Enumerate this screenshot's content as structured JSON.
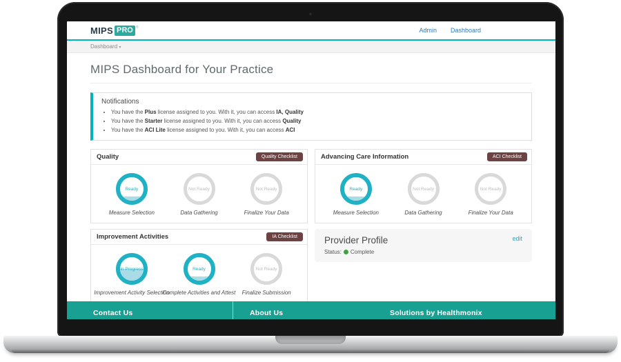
{
  "brand": {
    "mips": "MIPS",
    "pro": "PRO",
    "trademark": "®"
  },
  "nav": {
    "admin": "Admin",
    "dashboard": "Dashboard"
  },
  "breadcrumb": {
    "label": "Dashboard",
    "caret": "▾"
  },
  "page": {
    "title": "MIPS Dashboard for Your Practice"
  },
  "notifications": {
    "title": "Notifications",
    "items": [
      {
        "pre": "You have the ",
        "license": "Plus",
        "mid": " license assigned to you. With it, you can access ",
        "access": "IA, Quality"
      },
      {
        "pre": "You have the ",
        "license": "Starter",
        "mid": " license assigned to you. With it, you can access ",
        "access": "Quality"
      },
      {
        "pre": "You have the ",
        "license": "ACI Lite",
        "mid": " license assigned to you. With it, you can access ",
        "access": "ACI"
      }
    ]
  },
  "cards": [
    {
      "id": "quality",
      "title": "Quality",
      "button": "Quality Checklist",
      "steps": [
        {
          "status": "Ready",
          "state": "ready",
          "fill": 18,
          "label": "Measure Selection"
        },
        {
          "status": "Not Ready",
          "state": "not-ready",
          "fill": 0,
          "label": "Data Gathering"
        },
        {
          "status": "Not Ready",
          "state": "not-ready",
          "fill": 0,
          "label": "Finalize Your Data"
        }
      ]
    },
    {
      "id": "aci",
      "title": "Advancing Care Information",
      "button": "ACI Checklist",
      "steps": [
        {
          "status": "Ready",
          "state": "ready",
          "fill": 18,
          "label": "Measure Selection"
        },
        {
          "status": "Not Ready",
          "state": "not-ready",
          "fill": 0,
          "label": "Data Gathering"
        },
        {
          "status": "Not Ready",
          "state": "not-ready",
          "fill": 0,
          "label": "Finalize Your Data"
        }
      ]
    },
    {
      "id": "ia",
      "title": "Improvement Activities",
      "button": "IA Checklist",
      "steps": [
        {
          "status": "In Progress",
          "state": "in-progress",
          "fill": 50,
          "label": "Improvement Activity Selection"
        },
        {
          "status": "Ready",
          "state": "ready",
          "fill": 18,
          "label": "Complete Activities and Attest"
        },
        {
          "status": "Not Ready",
          "state": "not-ready",
          "fill": 0,
          "label": "Finalize Submission"
        }
      ]
    }
  ],
  "provider_profile": {
    "title": "Provider Profile",
    "edit_label": "edit",
    "status_label": "Status:",
    "status_value": "Complete"
  },
  "footer": {
    "columns": [
      "Contact Us",
      "About Us",
      "Solutions by Healthmonix"
    ]
  },
  "colors": {
    "accent_teal": "#00b4bc",
    "logo_teal": "#2bab9f",
    "ring_teal": "#20b2c4",
    "ring_fill": "#aadce8",
    "ring_gray": "#d9d9d9",
    "checklist_button_maroon": "#6d4242",
    "footer_teal": "#18a092",
    "nav_link_blue": "#3279b7",
    "edit_link_blue": "#3a9fc4",
    "status_green": "#43a047"
  }
}
